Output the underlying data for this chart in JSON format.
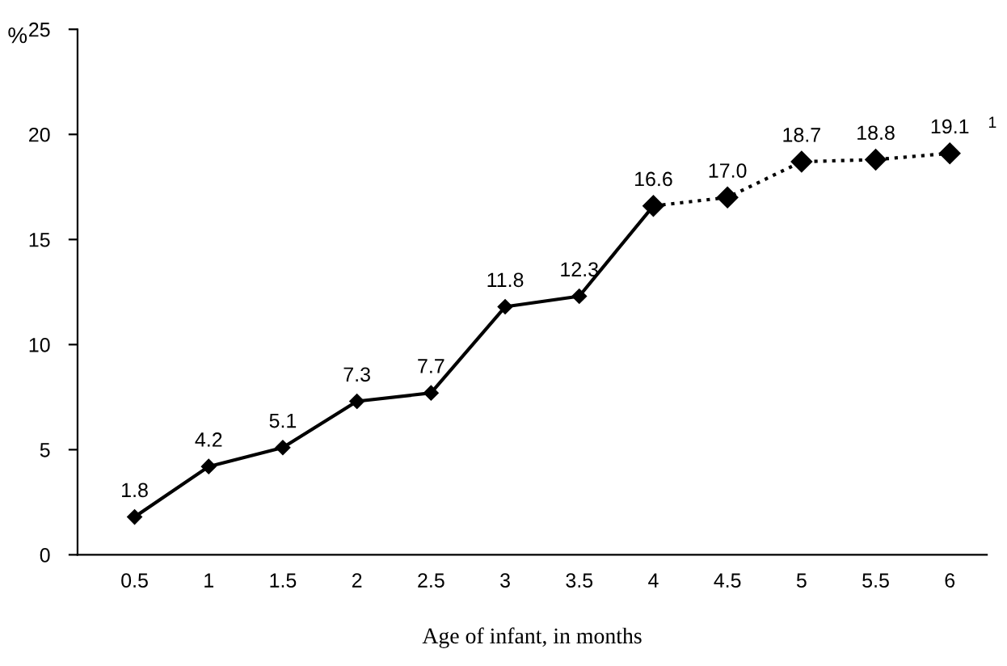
{
  "chart_data": {
    "type": "line",
    "xlabel": "Age of infant, in months",
    "ylabel": "%",
    "categories": [
      "0.5",
      "1",
      "1.5",
      "2",
      "2.5",
      "3",
      "3.5",
      "4",
      "4.5",
      "5",
      "5.5",
      "6"
    ],
    "series": [
      {
        "color": "#000000",
        "line_style": "solid",
        "values": [
          1.8,
          4.2,
          5.1,
          7.3,
          7.7,
          11.8,
          12.3,
          16.6,
          null,
          null,
          null,
          null
        ],
        "value_labels": [
          "1.8",
          "4.2",
          "5.1",
          "7.3",
          "7.7",
          "11.8",
          "12.3",
          "16.6",
          null,
          null,
          null,
          null
        ]
      },
      {
        "color": "#000000",
        "line_style": "dotted",
        "values": [
          null,
          null,
          null,
          null,
          null,
          null,
          null,
          16.6,
          17.0,
          18.7,
          18.8,
          19.1
        ],
        "value_labels": [
          null,
          null,
          null,
          null,
          null,
          null,
          null,
          null,
          "17.0",
          "18.7",
          "18.8",
          "19.1"
        ]
      }
    ],
    "marker": "diamond",
    "ylim": [
      0,
      25
    ],
    "yticks": [
      0,
      5,
      10,
      15,
      20,
      25
    ],
    "grid": false,
    "legend": false,
    "annotations": [
      {
        "text": "1",
        "x": "6",
        "y": 19.1
      }
    ]
  }
}
